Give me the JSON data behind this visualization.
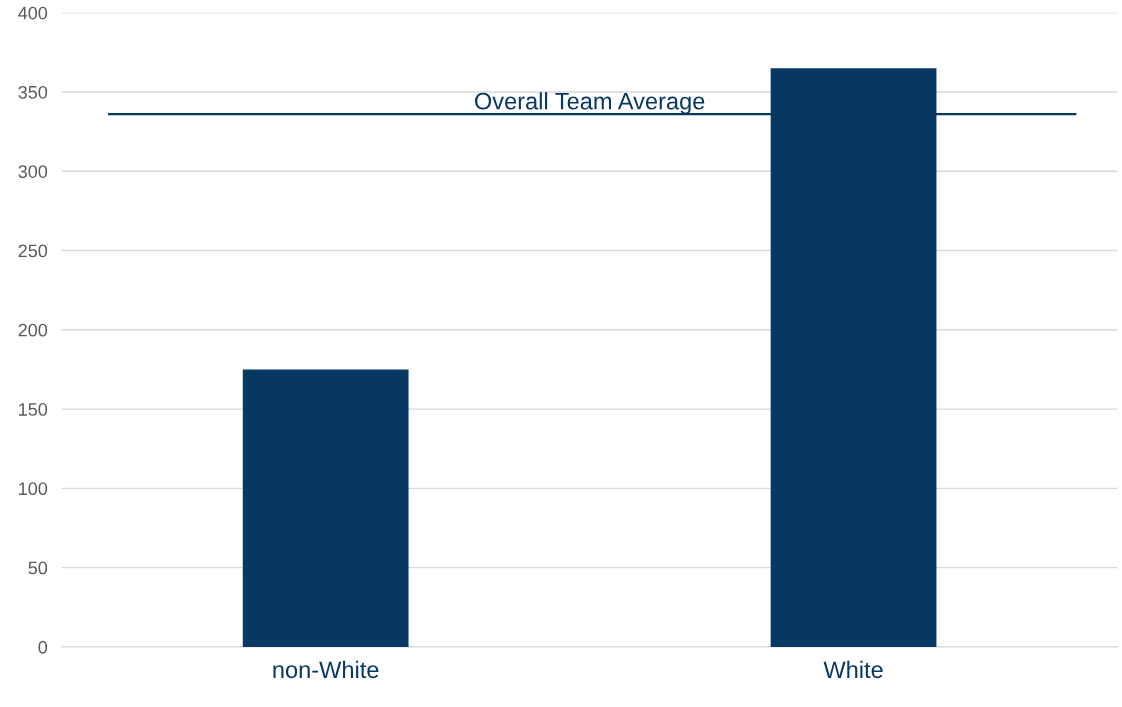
{
  "chart_data": {
    "type": "bar",
    "categories": [
      "non-White",
      "White"
    ],
    "values": [
      175,
      365
    ],
    "color": "#073763",
    "ylim": [
      0,
      400
    ],
    "yticks": [
      0,
      50,
      100,
      150,
      200,
      250,
      300,
      350,
      400
    ],
    "grid": "y",
    "ref_lines": [
      {
        "axis": "y",
        "value": 336,
        "label": "Overall Team Average",
        "color": "#073763",
        "line_style": "solid"
      }
    ]
  }
}
